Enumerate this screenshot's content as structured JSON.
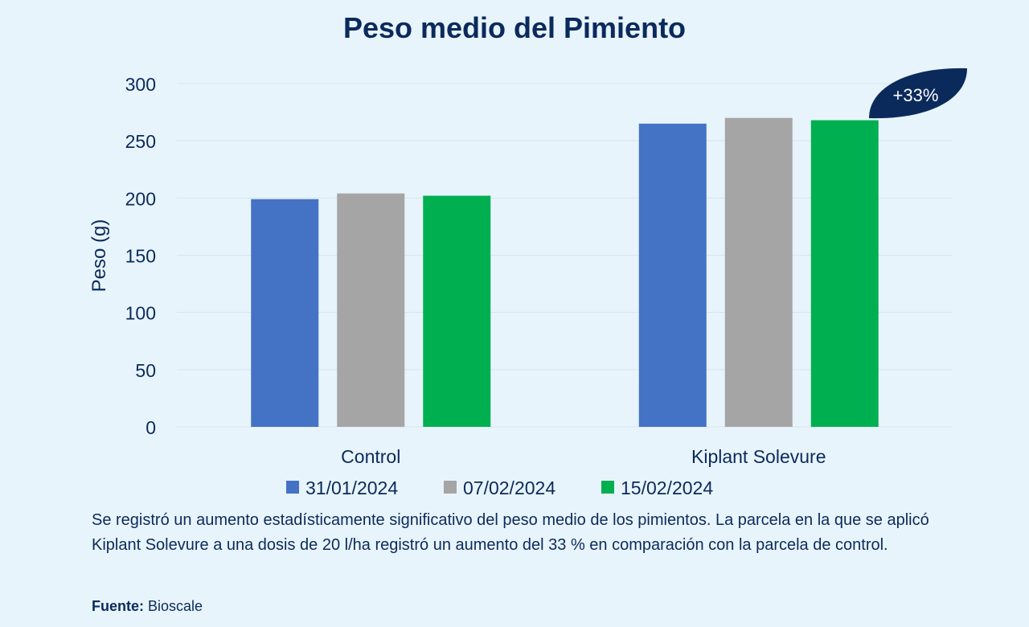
{
  "chart_data": {
    "type": "bar",
    "title": "Peso medio del Pimiento",
    "ylabel": "Peso (g)",
    "xlabel": "",
    "ylim": [
      0,
      300
    ],
    "yticks": [
      0,
      50,
      100,
      150,
      200,
      250,
      300
    ],
    "grid": true,
    "legend_position": "bottom",
    "categories": [
      "Control",
      "Kiplant Solevure"
    ],
    "series": [
      {
        "name": "31/01/2024",
        "color": "#4472c4",
        "values": [
          199,
          265
        ]
      },
      {
        "name": "07/02/2024",
        "color": "#a5a5a5",
        "values": [
          204,
          270
        ]
      },
      {
        "name": "15/02/2024",
        "color": "#00b050",
        "values": [
          202,
          268
        ]
      }
    ],
    "annotation": {
      "text": "+33%",
      "color": "#0b2a5c"
    }
  },
  "description": "Se registró un aumento estadísticamente significativo del peso medio de los pimientos. La parcela en la que se aplicó Kiplant Solevure a una dosis de 20 l/ha registró un aumento del 33 % en comparación con la parcela de control.",
  "source": {
    "label": "Fuente:",
    "value": " Bioscale"
  },
  "colors": {
    "background": "#e8f4fc",
    "text": "#0b2a5c",
    "grid": "#d6e4ef"
  }
}
